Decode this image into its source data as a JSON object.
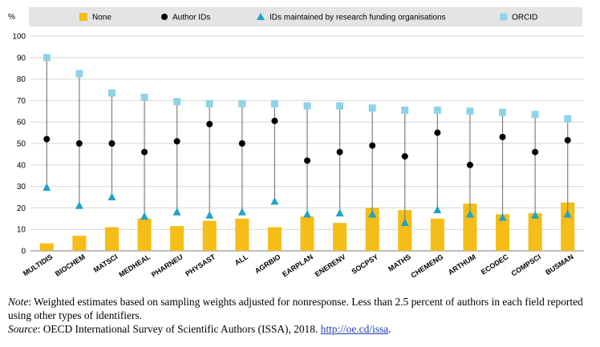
{
  "chart_data": {
    "type": "scatter",
    "ylabel": "%",
    "ylim": [
      0,
      100
    ],
    "yticks": [
      0,
      10,
      20,
      30,
      40,
      50,
      60,
      70,
      80,
      90,
      100
    ],
    "grid": true,
    "legend_position": "top",
    "categories": [
      "MULTIDIS",
      "BIOCHEM",
      "MATSCI",
      "MEDHEAL",
      "PHARNEU",
      "PHYSAST",
      "ALL",
      "AGRBIO",
      "EARPLAN",
      "ENERENV",
      "SOCPSY",
      "MATHS",
      "CHEMENG",
      "ARTHUM",
      "ECODEC",
      "COMPSCI",
      "BUSMAN"
    ],
    "series": [
      {
        "name": "None",
        "kind": "bar",
        "color": "#F5BD17",
        "values": [
          3.5,
          7,
          11,
          15,
          11.5,
          14,
          15,
          11,
          16,
          13,
          20,
          19,
          15,
          22,
          17,
          17.5,
          22.5
        ]
      },
      {
        "name": "Author IDs",
        "kind": "circle",
        "color": "#000000",
        "values": [
          52,
          50,
          50,
          46,
          51,
          59,
          50,
          60.5,
          42,
          46,
          49,
          44,
          55,
          40,
          53,
          46,
          51.5
        ]
      },
      {
        "name": "IDs maintained by research funding organisations",
        "kind": "triangle",
        "color": "#1FA3C8",
        "values": [
          29.5,
          21,
          25,
          16,
          18,
          16.5,
          18,
          23,
          17,
          17.5,
          17,
          13,
          19,
          17,
          15.5,
          16.5,
          17
        ]
      },
      {
        "name": "ORCID",
        "kind": "square",
        "color": "#8ED3E8",
        "values": [
          90,
          82.5,
          73.5,
          71.5,
          69.5,
          68.5,
          68.5,
          68.5,
          67.5,
          67.5,
          66.5,
          65.5,
          65.5,
          65,
          64.5,
          63.5,
          61.5
        ]
      }
    ]
  },
  "notes": {
    "note_label": "Note",
    "note_text": ": Weighted estimates based on sampling weights adjusted for nonresponse. Less than 2.5 percent of authors in each field reported using other types of identifiers.",
    "source_label": "Source",
    "source_text": ": OECD International Survey of Scientific Authors (ISSA), 2018. ",
    "source_link": "http://oe.cd/issa",
    "source_end": "."
  }
}
